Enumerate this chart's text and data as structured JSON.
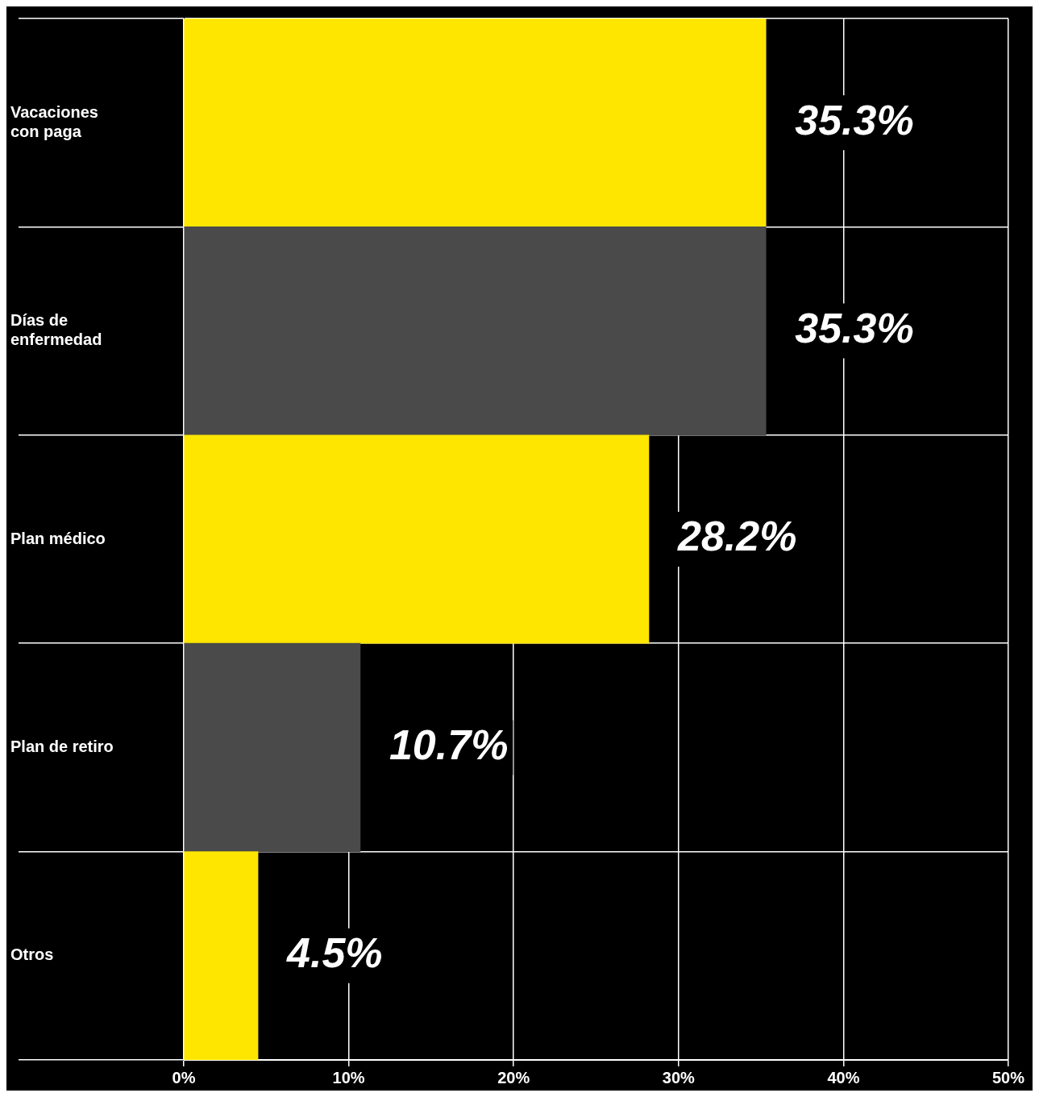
{
  "chart_data": {
    "type": "bar",
    "orientation": "horizontal",
    "categories": [
      "Vacaciones con paga",
      "Días de enfermedad",
      "Plan médico",
      "Plan de retiro",
      "Otros"
    ],
    "values": [
      35.3,
      35.3,
      28.2,
      10.7,
      4.5
    ],
    "colors": [
      "#ffe600",
      "#4a4a4a",
      "#ffe600",
      "#4a4a4a",
      "#ffe600"
    ],
    "value_labels": [
      "35.3%",
      "35.3%",
      "28.2%",
      "10.7%",
      "4.5%"
    ],
    "xlim": [
      0,
      50
    ],
    "xticks": [
      {
        "value": 0,
        "label": "0%"
      },
      {
        "value": 10,
        "label": "10%"
      },
      {
        "value": 20,
        "label": "20%"
      },
      {
        "value": 30,
        "label": "30%"
      },
      {
        "value": 40,
        "label": "40%"
      },
      {
        "value": 50,
        "label": "50%"
      }
    ],
    "grid": true,
    "legend": false
  }
}
